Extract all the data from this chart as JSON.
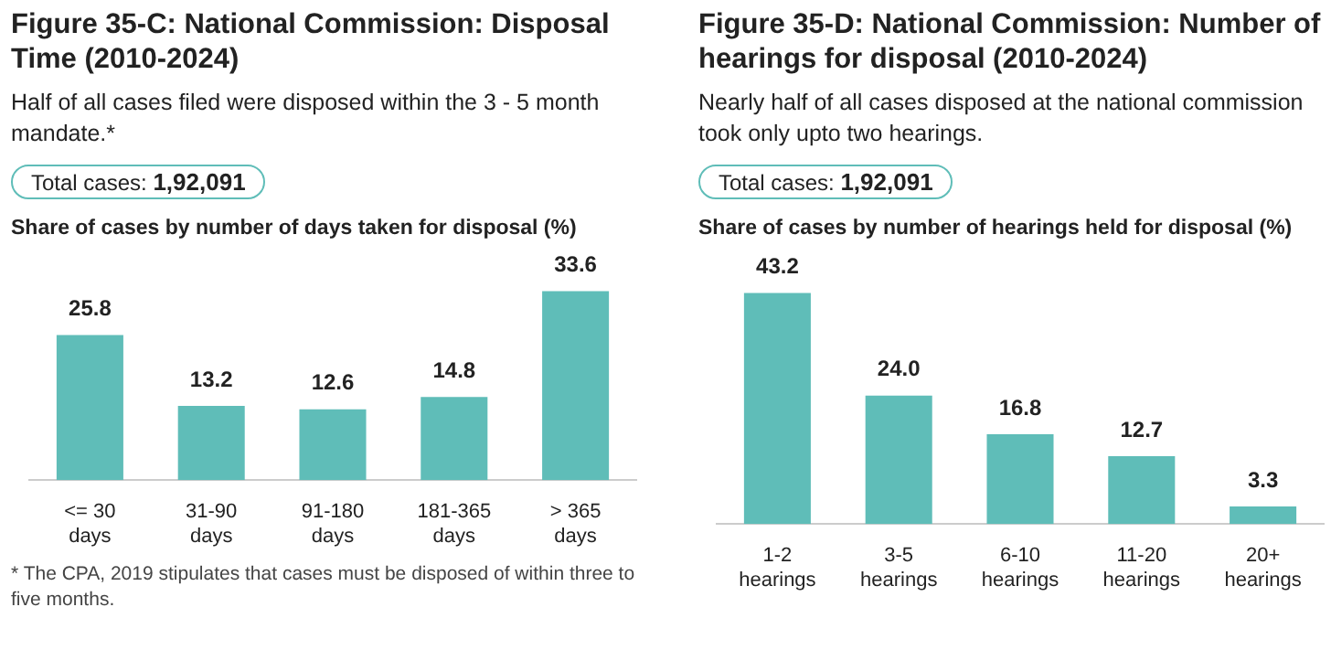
{
  "chart_data": [
    {
      "type": "bar",
      "title": "Figure 35-C: National Commission: Disposal Time (2010-2024)",
      "subtitle": "Half of all cases filed were disposed within the 3 - 5 month mandate.*",
      "ylabel": "Share of cases by number of days taken for disposal (%)",
      "annotations": [
        "Total cases: 1,92,091",
        "* The CPA, 2019 stipulates that cases must be disposed of within three to five months."
      ],
      "categories": [
        "<= 30 days",
        "31-90 days",
        "91-180 days",
        "181-365 days",
        "> 365 days"
      ],
      "values": [
        25.8,
        13.2,
        12.6,
        14.8,
        33.6
      ],
      "color": "#5fbdb8",
      "value_labels": [
        "25.8",
        "13.2",
        "12.6",
        "14.8",
        "33.6"
      ]
    },
    {
      "type": "bar",
      "title": "Figure 35-D: National Commission: Number of hearings for disposal (2010-2024)",
      "subtitle": "Nearly half of all cases disposed at the national commission took only upto two hearings.",
      "ylabel": "Share of cases by number of hearings held for disposal (%)",
      "annotations": [
        "Total cases: 1,92,091"
      ],
      "categories": [
        "1-2 hearings",
        "3-5 hearings",
        "6-10 hearings",
        "11-20 hearings",
        "20+ hearings"
      ],
      "values": [
        43.2,
        24.0,
        16.8,
        12.7,
        3.3
      ],
      "color": "#5fbdb8",
      "value_labels": [
        "43.2",
        "24.0",
        "16.8",
        "12.7",
        "3.3"
      ]
    }
  ]
}
